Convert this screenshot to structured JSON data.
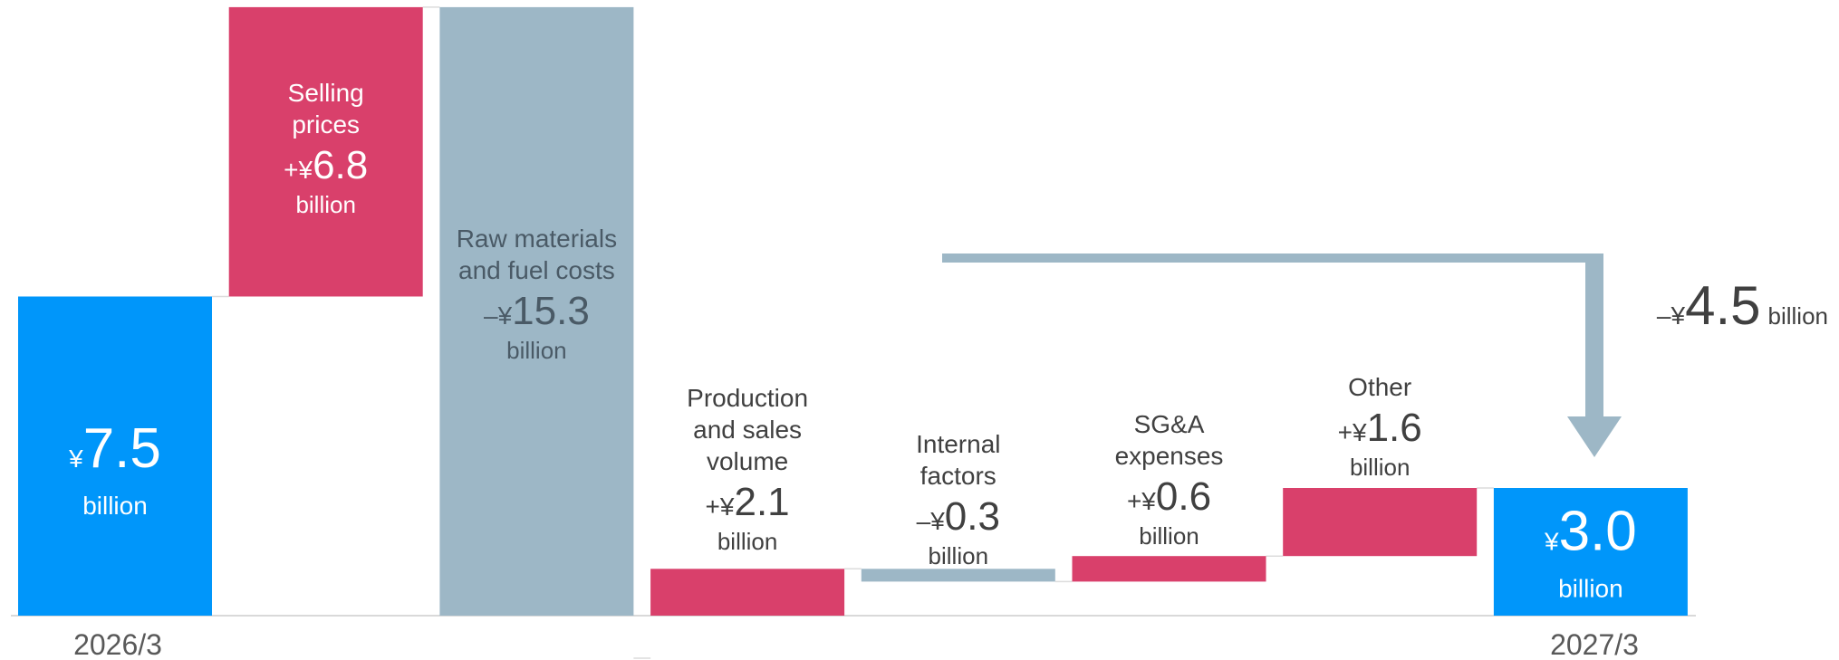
{
  "chart_data": {
    "type": "waterfall",
    "unit_note": "billion yen",
    "ylim": [
      0,
      16.5
    ],
    "bars": [
      {
        "key": "start",
        "kind": "total",
        "start": 0,
        "end": 7.5,
        "color": "#0096FA",
        "label_lines": [],
        "sign": "",
        "amount": "7.5",
        "unit": "billion",
        "tick": "2026/3"
      },
      {
        "key": "selling",
        "kind": "increase",
        "start": 7.5,
        "end": 14.3,
        "color": "#D9406B",
        "label_lines": [
          "Selling",
          "prices"
        ],
        "sign": "+",
        "amount": "6.8",
        "unit": "billion",
        "tick": ""
      },
      {
        "key": "raw",
        "kind": "decrease",
        "start": 14.3,
        "end": -1.0,
        "color": "#9DB7C6",
        "label_lines": [
          "Raw materials",
          "and fuel costs"
        ],
        "sign": "–",
        "amount": "15.3",
        "unit": "billion",
        "tick": ""
      },
      {
        "key": "production",
        "kind": "increase",
        "start": -1.0,
        "end": 1.1,
        "color": "#D9406B",
        "label_lines": [
          "Production",
          "and sales",
          "volume"
        ],
        "sign": "+",
        "amount": "2.1",
        "unit": "billion",
        "tick": ""
      },
      {
        "key": "internal",
        "kind": "decrease",
        "start": 1.1,
        "end": 0.8,
        "color": "#9DB7C6",
        "label_lines": [
          "Internal",
          "factors"
        ],
        "sign": "–",
        "amount": "0.3",
        "unit": "billion",
        "tick": ""
      },
      {
        "key": "sga",
        "kind": "increase",
        "start": 0.8,
        "end": 1.4,
        "color": "#D9406B",
        "label_lines": [
          "SG&A",
          "expenses"
        ],
        "sign": "+",
        "amount": "0.6",
        "unit": "billion",
        "tick": ""
      },
      {
        "key": "other",
        "kind": "increase",
        "start": 1.4,
        "end": 3.0,
        "color": "#D9406B",
        "label_lines": [
          "Other"
        ],
        "sign": "+",
        "amount": "1.6",
        "unit": "billion",
        "tick": ""
      },
      {
        "key": "end",
        "kind": "total",
        "start": 0,
        "end": 3.0,
        "color": "#0096FA",
        "label_lines": [],
        "sign": "",
        "amount": "3.0",
        "unit": "billion",
        "tick": "2027/3"
      }
    ],
    "change_callout": {
      "sign": "–",
      "amount": "4.5",
      "unit": "billion",
      "color": "#9DB7C6"
    }
  }
}
